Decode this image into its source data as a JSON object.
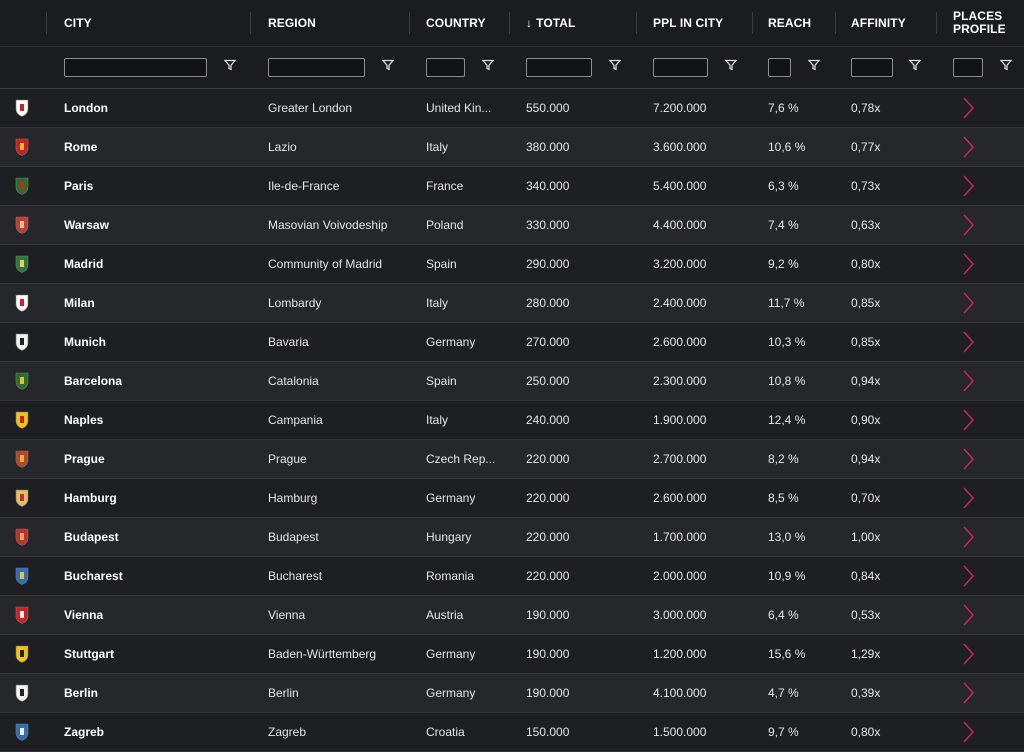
{
  "columns": {
    "city": "CITY",
    "region": "REGION",
    "country": "COUNTRY",
    "total": "TOTAL",
    "total_sort_indicator": "↓",
    "ppl_in_city": "PPL IN CITY",
    "reach": "REACH",
    "affinity": "AFFINITY",
    "places_profile_line1": "PLACES",
    "places_profile_line2": "PROFILE"
  },
  "icons": {
    "filter": "filter-funnel-icon",
    "row_action": "chevron-right-icon",
    "sort": "arrow-down-icon"
  },
  "colors": {
    "accent_chevron": "#c4235d",
    "background": "#1f2023",
    "row_alt": "#26272b",
    "header_text": "#ffffff"
  },
  "rows": [
    {
      "city": "London",
      "region": "Greater London",
      "country": "United Kin...",
      "total": "550.000",
      "ppl": "7.200.000",
      "reach": "7,6 %",
      "affinity": "0,78x",
      "crest": [
        "#ffffff",
        "#cc2222"
      ]
    },
    {
      "city": "Rome",
      "region": "Lazio",
      "country": "Italy",
      "total": "380.000",
      "ppl": "3.600.000",
      "reach": "10,6 %",
      "affinity": "0,77x",
      "crest": [
        "#cc1f1f",
        "#e8b830"
      ]
    },
    {
      "city": "Paris",
      "region": "Ile-de-France",
      "country": "France",
      "total": "340.000",
      "ppl": "5.400.000",
      "reach": "6,3 %",
      "affinity": "0,73x",
      "crest": [
        "#2a6e2a",
        "#cc2222"
      ]
    },
    {
      "city": "Warsaw",
      "region": "Masovian Voivodeship",
      "country": "Poland",
      "total": "330.000",
      "ppl": "4.400.000",
      "reach": "7,4 %",
      "affinity": "0,63x",
      "crest": [
        "#c23b3b",
        "#e0c080"
      ]
    },
    {
      "city": "Madrid",
      "region": "Community of Madrid",
      "country": "Spain",
      "total": "290.000",
      "ppl": "3.200.000",
      "reach": "9,2 %",
      "affinity": "0,80x",
      "crest": [
        "#2f7a3a",
        "#e0d070"
      ]
    },
    {
      "city": "Milan",
      "region": "Lombardy",
      "country": "Italy",
      "total": "280.000",
      "ppl": "2.400.000",
      "reach": "11,7 %",
      "affinity": "0,85x",
      "crest": [
        "#ffffff",
        "#cc2222"
      ]
    },
    {
      "city": "Munich",
      "region": "Bavaria",
      "country": "Germany",
      "total": "270.000",
      "ppl": "2.600.000",
      "reach": "10,3 %",
      "affinity": "0,85x",
      "crest": [
        "#f2f2f2",
        "#222222"
      ]
    },
    {
      "city": "Barcelona",
      "region": "Catalonia",
      "country": "Spain",
      "total": "250.000",
      "ppl": "2.300.000",
      "reach": "10,8 %",
      "affinity": "0,94x",
      "crest": [
        "#2a6e2a",
        "#e0c040"
      ]
    },
    {
      "city": "Naples",
      "region": "Campania",
      "country": "Italy",
      "total": "240.000",
      "ppl": "1.900.000",
      "reach": "12,4 %",
      "affinity": "0,90x",
      "crest": [
        "#f2c21a",
        "#cc1f1f"
      ]
    },
    {
      "city": "Prague",
      "region": "Prague",
      "country": "Czech Rep...",
      "total": "220.000",
      "ppl": "2.700.000",
      "reach": "8,2 %",
      "affinity": "0,94x",
      "crest": [
        "#b5462a",
        "#e0b040"
      ]
    },
    {
      "city": "Hamburg",
      "region": "Hamburg",
      "country": "Germany",
      "total": "220.000",
      "ppl": "2.600.000",
      "reach": "8,5 %",
      "affinity": "0,70x",
      "crest": [
        "#e2c060",
        "#c03030"
      ]
    },
    {
      "city": "Budapest",
      "region": "Budapest",
      "country": "Hungary",
      "total": "220.000",
      "ppl": "1.700.000",
      "reach": "13,0 %",
      "affinity": "1,00x",
      "crest": [
        "#c03030",
        "#d8b050"
      ]
    },
    {
      "city": "Bucharest",
      "region": "Bucharest",
      "country": "Romania",
      "total": "220.000",
      "ppl": "2.000.000",
      "reach": "10,9 %",
      "affinity": "0,84x",
      "crest": [
        "#2f6fb5",
        "#e0c050"
      ]
    },
    {
      "city": "Vienna",
      "region": "Vienna",
      "country": "Austria",
      "total": "190.000",
      "ppl": "3.000.000",
      "reach": "6,4 %",
      "affinity": "0,53x",
      "crest": [
        "#cc2222",
        "#eeeeee"
      ]
    },
    {
      "city": "Stuttgart",
      "region": "Baden-Württemberg",
      "country": "Germany",
      "total": "190.000",
      "ppl": "1.200.000",
      "reach": "15,6 %",
      "affinity": "1,29x",
      "crest": [
        "#f2c21a",
        "#222222"
      ]
    },
    {
      "city": "Berlin",
      "region": "Berlin",
      "country": "Germany",
      "total": "190.000",
      "ppl": "4.100.000",
      "reach": "4,7 %",
      "affinity": "0,39x",
      "crest": [
        "#f2f2f2",
        "#222222"
      ]
    },
    {
      "city": "Zagreb",
      "region": "Zagreb",
      "country": "Croatia",
      "total": "150.000",
      "ppl": "1.500.000",
      "reach": "9,7 %",
      "affinity": "0,80x",
      "crest": [
        "#2f6fb5",
        "#f2f2f2"
      ]
    }
  ]
}
